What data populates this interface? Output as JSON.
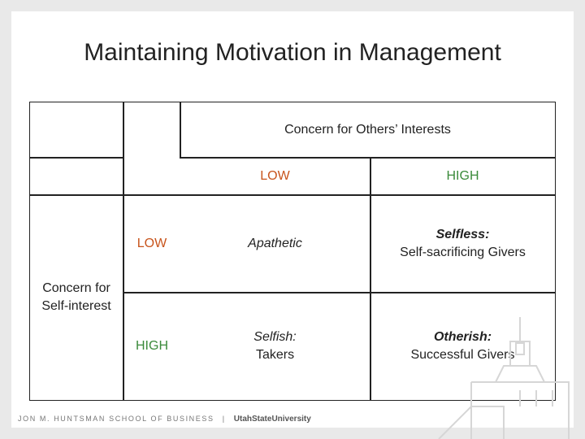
{
  "title": "Maintaining Motivation in Management",
  "matrix": {
    "col_header": "Concern for Others’ Interests",
    "row_header": "Concern for Self-interest",
    "col_levels": [
      "LOW",
      "HIGH"
    ],
    "row_levels": [
      "LOW",
      "HIGH"
    ],
    "cells": {
      "low_low": {
        "label": "Apathetic",
        "sub": ""
      },
      "low_high": {
        "label": "Selfless:",
        "sub": "Self-sacrificing Givers"
      },
      "high_low": {
        "label": "Selfish:",
        "sub": "Takers"
      },
      "high_high": {
        "label": "Otherish:",
        "sub": "Successful Givers"
      }
    }
  },
  "footer": {
    "school": "JON M. HUNTSMAN SCHOOL OF BUSINESS",
    "separator": "|",
    "university": "UtahStateUniversity"
  },
  "colors": {
    "low": "#c8541c",
    "high": "#3a8a3a",
    "text": "#222222"
  }
}
